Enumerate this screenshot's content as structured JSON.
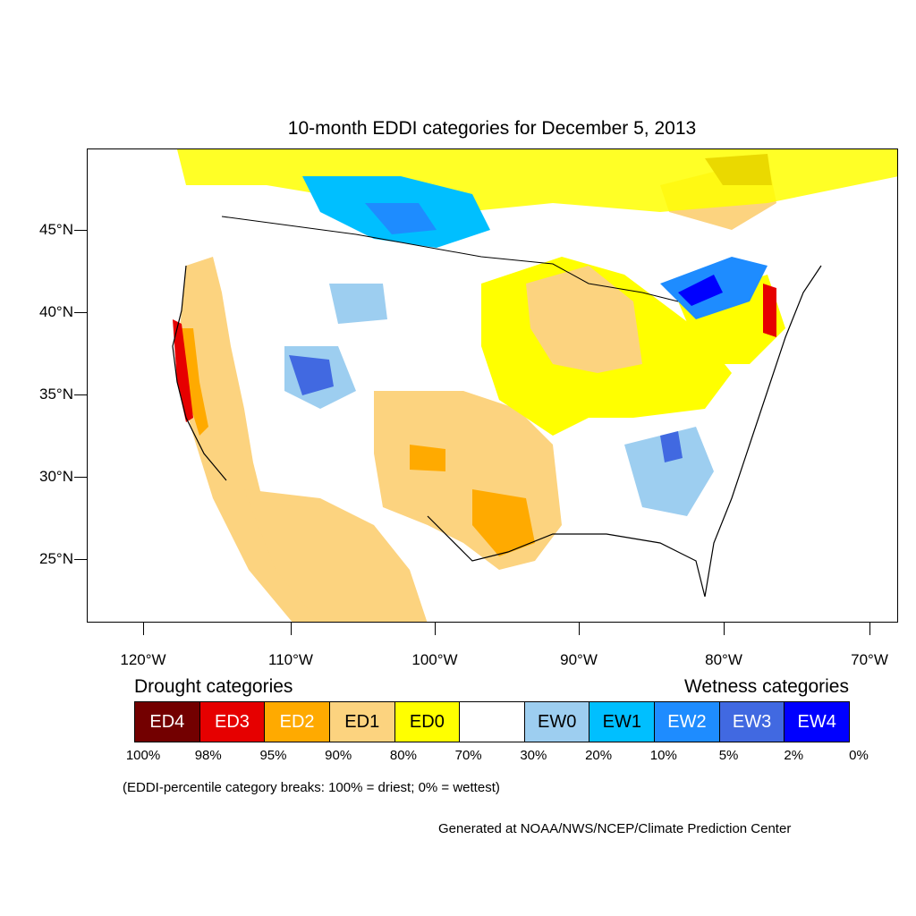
{
  "title": "10-month EDDI categories for December 5, 2013",
  "lat_labels": [
    "45°N",
    "40°N",
    "35°N",
    "30°N",
    "25°N"
  ],
  "lon_labels": [
    "120°W",
    "110°W",
    "100°W",
    "90°W",
    "80°W",
    "70°W"
  ],
  "legend": {
    "drought_heading": "Drought categories",
    "wetness_heading": "Wetness categories",
    "categories": [
      {
        "label": "ED4",
        "color": "#730000",
        "text_color": "#ffffff"
      },
      {
        "label": "ED3",
        "color": "#e60000",
        "text_color": "#ffffff"
      },
      {
        "label": "ED2",
        "color": "#ffaa00",
        "text_color": "#ffffff"
      },
      {
        "label": "ED1",
        "color": "#fcd37f",
        "text_color": "#000000"
      },
      {
        "label": "ED0",
        "color": "#ffff00",
        "text_color": "#000000"
      },
      {
        "label": "",
        "color": "#ffffff",
        "text_color": "#000000"
      },
      {
        "label": "EW0",
        "color": "#9dcef0",
        "text_color": "#000000"
      },
      {
        "label": "EW1",
        "color": "#00bfff",
        "text_color": "#000000"
      },
      {
        "label": "EW2",
        "color": "#1e8cff",
        "text_color": "#ffffff"
      },
      {
        "label": "EW3",
        "color": "#4169e1",
        "text_color": "#ffffff"
      },
      {
        "label": "EW4",
        "color": "#0000ff",
        "text_color": "#ffffff"
      }
    ],
    "breaks": [
      "100%",
      "98%",
      "95%",
      "90%",
      "80%",
      "70%",
      "30%",
      "20%",
      "10%",
      "5%",
      "2%",
      "0%"
    ]
  },
  "note": "(EDDI-percentile category breaks: 100% = driest; 0% = wettest)",
  "credit": "Generated at NOAA/NWS/NCEP/Climate Prediction Center"
}
